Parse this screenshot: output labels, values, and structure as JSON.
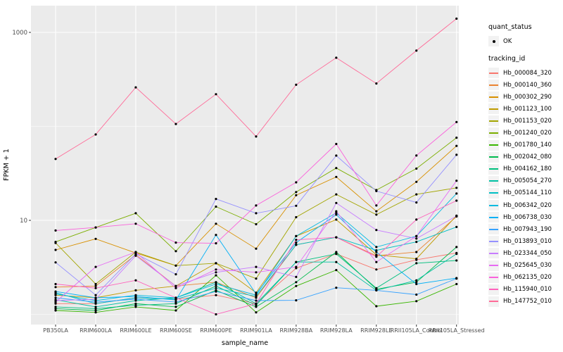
{
  "figure": {
    "background": "#FFFFFF",
    "panel_background": "#EBEBEB",
    "gridline_color": "#FFFFFF",
    "tick_label_color": "#4D4D4D",
    "point_color": "#000000"
  },
  "legend": {
    "quant_status_title": "quant_status",
    "quant_status_items": [
      {
        "label": "OK",
        "marker": "point-icon"
      }
    ],
    "tracking_title": "tracking_id"
  },
  "chart_data": {
    "type": "line",
    "title": "",
    "xlabel": "sample_name",
    "ylabel": "FPKM + 1",
    "y_scale": "log10",
    "y_major_breaks": [
      10,
      1000
    ],
    "y_minor_breaks": [
      1,
      100
    ],
    "y_tick_labels": [
      "10",
      "1000"
    ],
    "ylim": [
      0.85,
      1900
    ],
    "grid": true,
    "legend_position": "right",
    "categories": [
      "PB350LA",
      "RRIM600LA",
      "RRIM600LE",
      "RRIM600SE",
      "RRIM600PE",
      "RRIM901LA",
      "RRIM928BA",
      "RRIM928LA",
      "RRIM928LE",
      "RRII105LA_Control",
      "RRII105LA_Stressed"
    ],
    "series": [
      {
        "name": "Hb_000084_320",
        "color": "#F8766D",
        "values": [
          1.3,
          1.3,
          1.5,
          1.45,
          1.6,
          1.3,
          3.1,
          4.4,
          3.0,
          3.8,
          4.5
        ]
      },
      {
        "name": "Hb_000140_360",
        "color": "#EA8331",
        "values": [
          1.95,
          2.0,
          4.3,
          2.0,
          2.2,
          1.5,
          5.5,
          6.6,
          4.2,
          4.6,
          11.0
        ]
      },
      {
        "name": "Hb_000302_290",
        "color": "#D89000",
        "values": [
          4.85,
          6.35,
          4.5,
          3.3,
          9.2,
          5.0,
          18.5,
          29.0,
          12.5,
          25.7,
          62.0
        ]
      },
      {
        "name": "Hb_001123_100",
        "color": "#C09B00",
        "values": [
          1.6,
          1.5,
          1.8,
          2.0,
          3.5,
          1.7,
          6.8,
          10.2,
          4.3,
          3.9,
          11.2
        ]
      },
      {
        "name": "Hb_001153_020",
        "color": "#A3A500",
        "values": [
          5.75,
          2.1,
          4.6,
          3.3,
          3.5,
          2.4,
          10.8,
          18.9,
          11.5,
          18.9,
          22.2
        ]
      },
      {
        "name": "Hb_001240_020",
        "color": "#7CAE00",
        "values": [
          5.9,
          8.4,
          11.9,
          4.7,
          14.0,
          9.1,
          20.0,
          36.0,
          21.0,
          35.5,
          75.7
        ]
      },
      {
        "name": "Hb_001780_140",
        "color": "#39B600",
        "values": [
          1.1,
          1.05,
          1.2,
          1.1,
          2.6,
          1.05,
          2.0,
          2.96,
          1.22,
          1.38,
          2.1
        ]
      },
      {
        "name": "Hb_002042_080",
        "color": "#00BB4E",
        "values": [
          1.15,
          1.1,
          1.3,
          1.2,
          1.8,
          1.2,
          2.2,
          4.6,
          1.85,
          2.2,
          5.2
        ]
      },
      {
        "name": "Hb_004162_180",
        "color": "#00BF7D",
        "values": [
          1.2,
          1.15,
          1.25,
          1.3,
          2.0,
          1.25,
          3.6,
          4.4,
          1.9,
          3.5,
          3.74
        ]
      },
      {
        "name": "Hb_005054_270",
        "color": "#00C1A3",
        "values": [
          1.43,
          1.2,
          1.4,
          1.5,
          2.2,
          1.3,
          3.6,
          3.6,
          1.8,
          2.3,
          4.4
        ]
      },
      {
        "name": "Hb_005144_110",
        "color": "#00BFC4",
        "values": [
          1.7,
          1.3,
          1.5,
          1.45,
          1.9,
          1.55,
          5.5,
          6.6,
          4.8,
          5.9,
          8.5
        ]
      },
      {
        "name": "Hb_006342_020",
        "color": "#00BAE0",
        "values": [
          1.65,
          1.4,
          1.6,
          1.5,
          2.1,
          1.6,
          6.8,
          12.0,
          5.2,
          6.8,
          19.3
        ]
      },
      {
        "name": "Hb_006738_030",
        "color": "#00B0F6",
        "values": [
          1.75,
          1.5,
          1.55,
          1.42,
          7.0,
          1.65,
          5.8,
          11.5,
          4.6,
          2.1,
          2.43
        ]
      },
      {
        "name": "Hb_007943_190",
        "color": "#35A2FF",
        "values": [
          1.5,
          1.35,
          1.45,
          1.35,
          1.75,
          1.4,
          1.41,
          1.92,
          1.8,
          1.62,
          2.4
        ]
      },
      {
        "name": "Hb_013893_010",
        "color": "#9590FF",
        "values": [
          3.57,
          1.6,
          4.4,
          2.67,
          16.9,
          11.9,
          14.3,
          48.9,
          20.5,
          15.5,
          49.8
        ]
      },
      {
        "name": "Hb_023344_050",
        "color": "#C77CFF",
        "values": [
          1.4,
          1.45,
          4.2,
          2.0,
          2.8,
          3.2,
          2.5,
          15.3,
          7.9,
          6.4,
          11.1
        ]
      },
      {
        "name": "Hb_025645_030",
        "color": "#E76BF3",
        "values": [
          1.35,
          3.2,
          4.6,
          1.9,
          3.0,
          2.8,
          3.2,
          12.5,
          3.6,
          6.8,
          26.4
        ]
      },
      {
        "name": "Hb_062135_020",
        "color": "#FA62DB",
        "values": [
          7.8,
          8.4,
          9.2,
          5.8,
          5.7,
          14.4,
          25.4,
          65.0,
          14.4,
          49.0,
          111.0
        ]
      },
      {
        "name": "Hb_115940_010",
        "color": "#FF62BC",
        "values": [
          2.1,
          1.9,
          2.3,
          1.5,
          1.0,
          1.3,
          6.2,
          6.6,
          4.1,
          10.2,
          16.2
        ]
      },
      {
        "name": "Hb_147752_010",
        "color": "#FF6A98",
        "values": [
          45,
          82,
          260,
          106,
          220,
          78,
          277,
          537,
          286,
          640,
          1400
        ]
      }
    ]
  }
}
